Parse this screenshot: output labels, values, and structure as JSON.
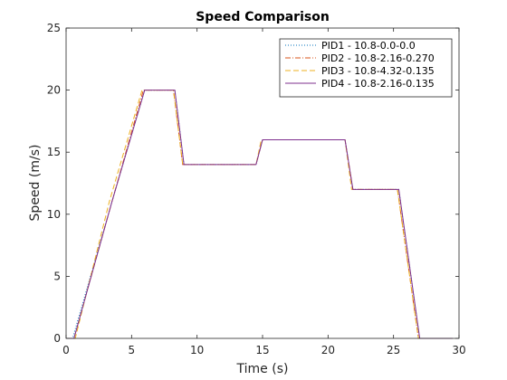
{
  "chart_data": {
    "type": "line",
    "title": "Speed Comparison",
    "xlabel": "Time (s)",
    "ylabel": "Speed (m/s)",
    "xlim": [
      0,
      30
    ],
    "ylim": [
      0,
      25
    ],
    "xticks": [
      0,
      5,
      10,
      15,
      20,
      25,
      30
    ],
    "yticks": [
      0,
      5,
      10,
      15,
      20,
      25
    ],
    "grid": false,
    "legend_position": "top-right",
    "series": [
      {
        "name": "PID1 - 10.8-0.0-0.0",
        "color": "#0072bd",
        "dash": "dotted",
        "x": [
          0,
          0.5,
          3.5,
          6.0,
          8.3,
          9.0,
          14.5,
          15.0,
          21.3,
          21.9,
          25.4,
          27.0,
          29.5
        ],
        "y": [
          0,
          0,
          11,
          20,
          20,
          14,
          14,
          16,
          16,
          12,
          12,
          0,
          0
        ]
      },
      {
        "name": "PID2 - 10.8-2.16-0.270",
        "color": "#d95319",
        "dash": "dashdot",
        "x": [
          0,
          0.6,
          3.5,
          5.9,
          8.2,
          8.9,
          14.5,
          15.0,
          21.3,
          21.9,
          25.3,
          26.9,
          29.5
        ],
        "y": [
          0,
          0,
          11,
          20,
          20,
          14,
          14,
          16,
          16,
          12,
          12,
          0,
          0
        ]
      },
      {
        "name": "PID3 - 10.8-4.32-0.135",
        "color": "#edb120",
        "dash": "dashed",
        "x": [
          0,
          0.7,
          3.3,
          5.8,
          8.2,
          8.9,
          14.5,
          14.9,
          21.3,
          21.8,
          25.3,
          26.9,
          29.5
        ],
        "y": [
          0,
          0,
          11,
          20,
          20,
          14,
          14,
          16,
          16,
          12,
          12,
          0,
          0
        ]
      },
      {
        "name": "PID4 - 10.8-2.16-0.135",
        "color": "#7e2f8e",
        "dash": "solid",
        "x": [
          0,
          0.6,
          3.5,
          6.0,
          8.3,
          9.0,
          14.5,
          15.0,
          21.3,
          21.9,
          25.4,
          27.0,
          29.5
        ],
        "y": [
          0,
          0,
          11,
          20,
          20,
          14,
          14,
          16,
          16,
          12,
          12,
          0,
          0
        ]
      }
    ]
  }
}
